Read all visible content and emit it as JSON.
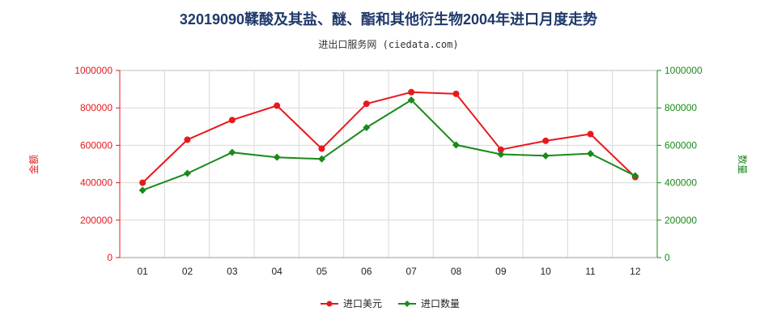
{
  "chart_data": {
    "type": "line",
    "title": "32019090鞣酸及其盐、醚、酯和其他衍生物2004年进口月度走势",
    "subtitle": "进出口服务网 (ciedata.com)",
    "categories": [
      "01",
      "02",
      "03",
      "04",
      "05",
      "06",
      "07",
      "08",
      "09",
      "10",
      "11",
      "12"
    ],
    "y_left_label": "金额",
    "y_right_label": "数量",
    "ylim": [
      0,
      1000000
    ],
    "y_ticks": [
      "0",
      "200000",
      "400000",
      "600000",
      "800000",
      "1000000"
    ],
    "series": [
      {
        "name": "进口美元",
        "color": "#e8191c",
        "axis": "left",
        "values": [
          400000,
          630000,
          735000,
          812000,
          582000,
          822000,
          884000,
          875000,
          577000,
          624000,
          660000,
          430000
        ]
      },
      {
        "name": "进口数量",
        "color": "#1a8a1a",
        "axis": "right",
        "values": [
          360000,
          450000,
          562000,
          536000,
          527000,
          695000,
          842000,
          602000,
          552000,
          544000,
          556000,
          437000
        ]
      }
    ],
    "grid": true,
    "legend_position": "bottom-center",
    "left_axis_color": "#e8191c",
    "right_axis_color": "#1a8a1a"
  }
}
